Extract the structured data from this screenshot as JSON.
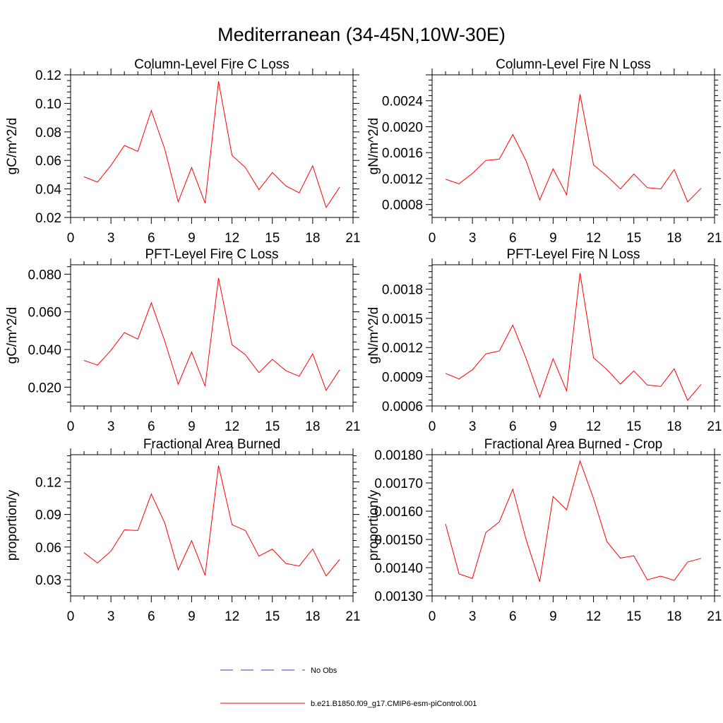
{
  "figure_title": "Mediterranean (34-45N,10W-30E)",
  "colors": {
    "series": "#ff0000",
    "no_obs": "#3333cc",
    "axes": "#000000"
  },
  "legend": {
    "no_obs_label": "No Obs",
    "series_label": "b.e21.B1850.f09_g17.CMIP6-esm-piControl.001"
  },
  "chart_data": [
    {
      "type": "line",
      "title": "Column-Level Fire C Loss",
      "xlabel": "",
      "ylabel": "gC/m^2/d",
      "xlim": [
        0,
        21
      ],
      "ylim": [
        0.02,
        0.12
      ],
      "xticks": [
        0,
        3,
        6,
        9,
        12,
        15,
        18,
        21
      ],
      "yticks": [
        0.02,
        0.04,
        0.06,
        0.08,
        0.1,
        0.12
      ],
      "ytick_labels": [
        "0.02",
        "0.04",
        "0.06",
        "0.08",
        "0.10",
        "0.12"
      ],
      "x": [
        1,
        2,
        3,
        4,
        5,
        6,
        7,
        8,
        9,
        10,
        11,
        12,
        13,
        14,
        15,
        16,
        17,
        18,
        19,
        20
      ],
      "series": [
        {
          "name": "b.e21.B1850.f09_g17.CMIP6-esm-piControl.001",
          "values": [
            0.0485,
            0.0448,
            0.0565,
            0.0705,
            0.0663,
            0.095,
            0.068,
            0.031,
            0.055,
            0.03,
            0.1155,
            0.0635,
            0.055,
            0.0395,
            0.0515,
            0.0422,
            0.0373,
            0.0563,
            0.027,
            0.0412
          ]
        }
      ]
    },
    {
      "type": "line",
      "title": "Column-Level Fire N Loss",
      "xlabel": "",
      "ylabel": "gN/m^2/d",
      "xlim": [
        0,
        21
      ],
      "ylim": [
        0.0006,
        0.0028
      ],
      "xticks": [
        0,
        3,
        6,
        9,
        12,
        15,
        18,
        21
      ],
      "yticks": [
        0.0008,
        0.0012,
        0.0016,
        0.002,
        0.0024
      ],
      "ytick_labels": [
        "0.0008",
        "0.0012",
        "0.0016",
        "0.0020",
        "0.0024"
      ],
      "x": [
        1,
        2,
        3,
        4,
        5,
        6,
        7,
        8,
        9,
        10,
        11,
        12,
        13,
        14,
        15,
        16,
        17,
        18,
        19,
        20
      ],
      "series": [
        {
          "name": "b.e21.B1850.f09_g17.CMIP6-esm-piControl.001",
          "values": [
            0.00119,
            0.00112,
            0.00128,
            0.00148,
            0.0015,
            0.00188,
            0.00147,
            0.00087,
            0.00135,
            0.00095,
            0.0025,
            0.00141,
            0.00124,
            0.00104,
            0.00127,
            0.00106,
            0.00104,
            0.00134,
            0.00084,
            0.00105
          ]
        }
      ]
    },
    {
      "type": "line",
      "title": "PFT-Level Fire C Loss",
      "xlabel": "",
      "ylabel": "gC/m^2/d",
      "xlim": [
        0,
        21
      ],
      "ylim": [
        0.01,
        0.085
      ],
      "xticks": [
        0,
        3,
        6,
        9,
        12,
        15,
        18,
        21
      ],
      "yticks": [
        0.02,
        0.04,
        0.06,
        0.08
      ],
      "ytick_labels": [
        "0.020",
        "0.040",
        "0.060",
        "0.080"
      ],
      "x": [
        1,
        2,
        3,
        4,
        5,
        6,
        7,
        8,
        9,
        10,
        11,
        12,
        13,
        14,
        15,
        16,
        17,
        18,
        19,
        20
      ],
      "series": [
        {
          "name": "b.e21.B1850.f09_g17.CMIP6-esm-piControl.001",
          "values": [
            0.0342,
            0.0317,
            0.0395,
            0.049,
            0.0455,
            0.0648,
            0.0445,
            0.0215,
            0.0387,
            0.0205,
            0.078,
            0.0425,
            0.0372,
            0.0277,
            0.0348,
            0.0288,
            0.0258,
            0.0377,
            0.0183,
            0.0292
          ]
        }
      ]
    },
    {
      "type": "line",
      "title": "PFT-Level Fire N Loss",
      "xlabel": "",
      "ylabel": "gN/m^2/d",
      "xlim": [
        0,
        21
      ],
      "ylim": [
        0.0006,
        0.00205
      ],
      "xticks": [
        0,
        3,
        6,
        9,
        12,
        15,
        18,
        21
      ],
      "yticks": [
        0.0006,
        0.0009,
        0.0012,
        0.0015,
        0.0018
      ],
      "ytick_labels": [
        "0.0006",
        "0.0009",
        "0.0012",
        "0.0015",
        "0.0018"
      ],
      "x": [
        1,
        2,
        3,
        4,
        5,
        6,
        7,
        8,
        9,
        10,
        11,
        12,
        13,
        14,
        15,
        16,
        17,
        18,
        19,
        20
      ],
      "series": [
        {
          "name": "b.e21.B1850.f09_g17.CMIP6-esm-piControl.001",
          "values": [
            0.000935,
            0.000878,
            0.000972,
            0.001135,
            0.001165,
            0.00143,
            0.001085,
            0.00069,
            0.001085,
            0.000755,
            0.001965,
            0.001095,
            0.000975,
            0.000825,
            0.00096,
            0.000815,
            0.0008,
            0.000982,
            0.000658,
            0.000822
          ]
        }
      ]
    },
    {
      "type": "line",
      "title": "Fractional Area Burned",
      "xlabel": "",
      "ylabel": "proportion/y",
      "xlim": [
        0,
        21
      ],
      "ylim": [
        0.015,
        0.145
      ],
      "xticks": [
        0,
        3,
        6,
        9,
        12,
        15,
        18,
        21
      ],
      "yticks": [
        0.03,
        0.06,
        0.09,
        0.12
      ],
      "ytick_labels": [
        "0.03",
        "0.06",
        "0.09",
        "0.12"
      ],
      "x": [
        1,
        2,
        3,
        4,
        5,
        6,
        7,
        8,
        9,
        10,
        11,
        12,
        13,
        14,
        15,
        16,
        17,
        18,
        19,
        20
      ],
      "series": [
        {
          "name": "b.e21.B1850.f09_g17.CMIP6-esm-piControl.001",
          "values": [
            0.0548,
            0.0453,
            0.0562,
            0.0758,
            0.0752,
            0.1088,
            0.0822,
            0.039,
            0.0658,
            0.034,
            0.135,
            0.0805,
            0.0752,
            0.0516,
            0.058,
            0.0449,
            0.0425,
            0.0582,
            0.0333,
            0.0485
          ]
        }
      ]
    },
    {
      "type": "line",
      "title": "Fractional Area Burned - Crop",
      "xlabel": "",
      "ylabel": "proportion/y",
      "xlim": [
        0,
        21
      ],
      "ylim": [
        0.0013,
        0.0018
      ],
      "xticks": [
        0,
        3,
        6,
        9,
        12,
        15,
        18,
        21
      ],
      "yticks": [
        0.0013,
        0.0014,
        0.0015,
        0.0016,
        0.0017,
        0.0018
      ],
      "ytick_labels": [
        "0.00130",
        "0.00140",
        "0.00150",
        "0.00160",
        "0.00170",
        "0.00180"
      ],
      "x": [
        1,
        2,
        3,
        4,
        5,
        6,
        7,
        8,
        9,
        10,
        11,
        12,
        13,
        14,
        15,
        16,
        17,
        18,
        19,
        20
      ],
      "series": [
        {
          "name": "b.e21.B1850.f09_g17.CMIP6-esm-piControl.001",
          "values": [
            0.001555,
            0.001378,
            0.001362,
            0.001525,
            0.001562,
            0.001678,
            0.001498,
            0.00135,
            0.001652,
            0.001605,
            0.001778,
            0.001645,
            0.001492,
            0.001434,
            0.001442,
            0.001357,
            0.00137,
            0.001355,
            0.00142,
            0.001433
          ]
        }
      ]
    }
  ]
}
